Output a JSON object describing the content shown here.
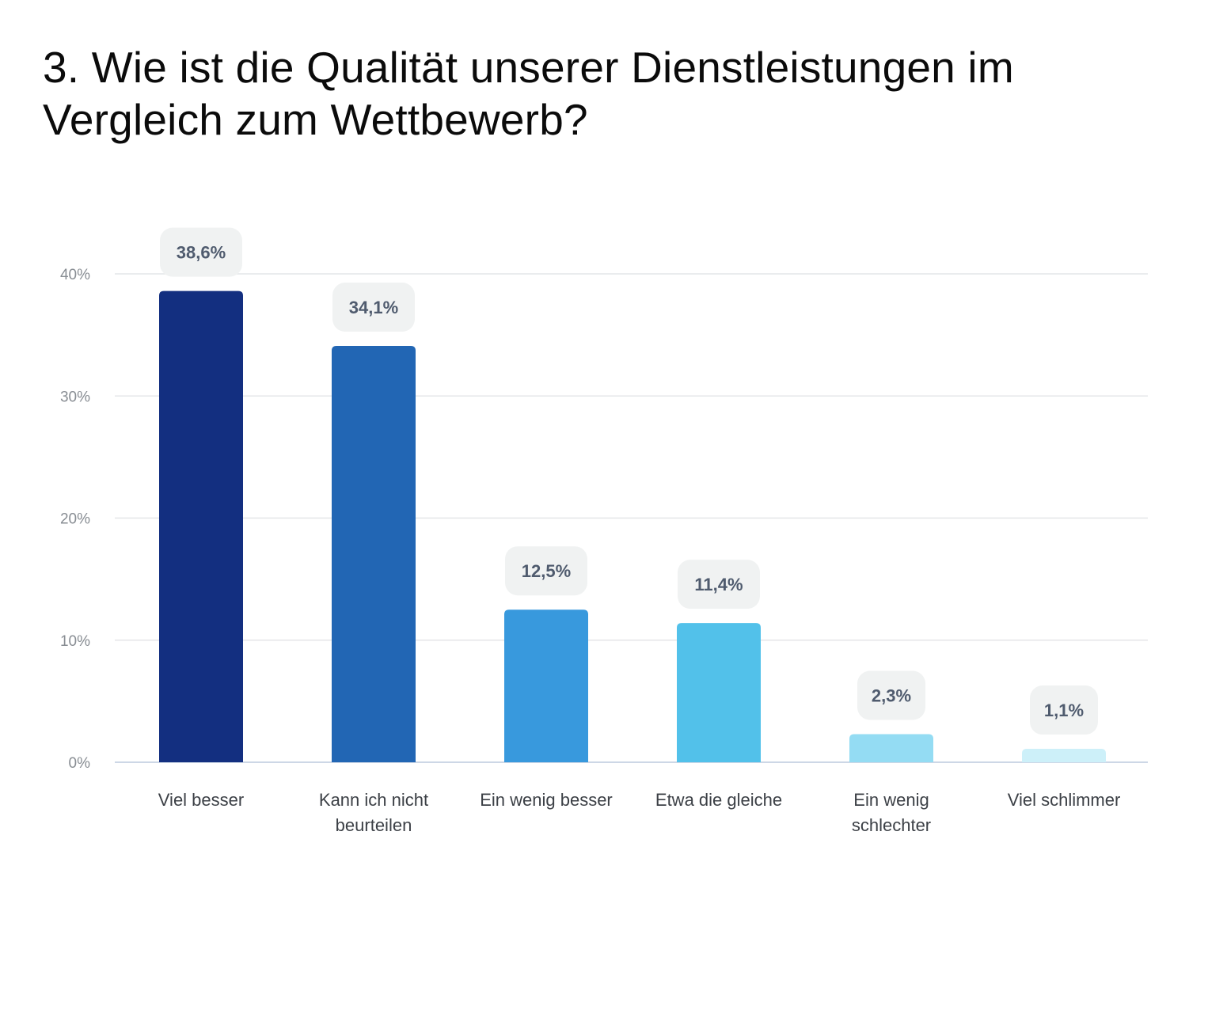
{
  "chart_data": {
    "type": "bar",
    "title": "3. Wie ist die Qualität unserer Dienstleistungen im Vergleich zum Wettbewerb?",
    "xlabel": "",
    "ylabel": "",
    "categories": [
      "Viel besser",
      "Kann ich nicht beurteilen",
      "Ein wenig besser",
      "Etwa die gleiche",
      "Ein wenig schlechter",
      "Viel schlimmer"
    ],
    "category_lines": [
      [
        "Viel besser"
      ],
      [
        "Kann ich nicht",
        "beurteilen"
      ],
      [
        "Ein wenig besser"
      ],
      [
        "Etwa die gleiche"
      ],
      [
        "Ein wenig",
        "schlechter"
      ],
      [
        "Viel schlimmer"
      ]
    ],
    "values": [
      38.6,
      34.1,
      12.5,
      11.4,
      2.3,
      1.1
    ],
    "data_labels": [
      "38,6%",
      "34,1%",
      "12,5%",
      "11,4%",
      "2,3%",
      "1,1%"
    ],
    "colors": [
      "#132f80",
      "#2266b4",
      "#3899dd",
      "#52c1ea",
      "#94dcf3",
      "#cdf0f9"
    ],
    "ylim": [
      0,
      40
    ],
    "yticks": [
      0,
      10,
      20,
      30,
      40
    ],
    "ytick_labels": [
      "0%",
      "10%",
      "20%",
      "30%",
      "40%"
    ],
    "grid": true,
    "legend": "none"
  }
}
